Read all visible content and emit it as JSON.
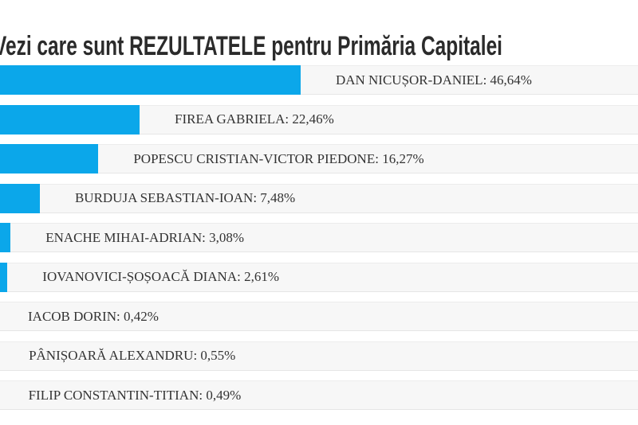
{
  "header": {
    "title": "Vezi care sunt REZULTATELE pentru Primăria Capitalei"
  },
  "chart_data": {
    "type": "bar",
    "orientation": "horizontal",
    "title": "Vezi care sunt REZULTATELE pentru Primăria Capitalei",
    "categories": [
      "DAN NICUȘOR-DANIEL",
      "FIREA GABRIELA",
      "POPESCU CRISTIAN-VICTOR PIEDONE",
      "BURDUJA SEBASTIAN-IOAN",
      "ENACHE MIHAI-ADRIAN",
      "IOVANOVICI-ȘOȘOACĂ DIANA",
      "IACOB DORIN",
      "PÂNIȘOARĂ ALEXANDRU",
      "FILIP CONSTANTIN-TITIAN"
    ],
    "values": [
      46.64,
      22.46,
      16.27,
      7.48,
      3.08,
      2.61,
      0.42,
      0.55,
      0.49
    ],
    "percent_labels": [
      "46,64%",
      "22,46%",
      "16,27%",
      "7,48%",
      "3,08%",
      "2,61%",
      "0,42%",
      "0,55%",
      "0,49%"
    ],
    "label_separator": ": ",
    "xlabel": "",
    "ylabel": "",
    "xlim": [
      0,
      100
    ],
    "grid": false,
    "legend": false,
    "bar_color": "#0ba7ea",
    "track_color": "#f7f7f7",
    "label_color": "#333333"
  }
}
